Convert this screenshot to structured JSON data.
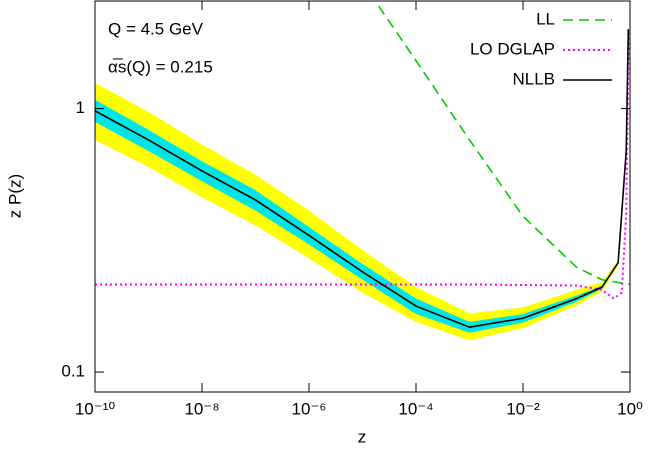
{
  "chart_data": {
    "type": "line",
    "xlabel": "z",
    "ylabel": "z P(z)",
    "annotations": [
      "Q = 4.5 GeV",
      "α̅s(Q) = 0.215"
    ],
    "xlog": true,
    "ylog": true,
    "xlim": [
      1e-10,
      1
    ],
    "ylim": [
      0.084,
      2.56
    ],
    "xticks": [
      {
        "value": 1e-10,
        "label": "10⁻¹⁰"
      },
      {
        "value": 1e-08,
        "label": "10⁻⁸"
      },
      {
        "value": 1e-06,
        "label": "10⁻⁶"
      },
      {
        "value": 0.0001,
        "label": "10⁻⁴"
      },
      {
        "value": 0.01,
        "label": "10⁻²"
      },
      {
        "value": 1,
        "label": "10⁰"
      }
    ],
    "yticks": [
      0.1,
      1
    ],
    "legend": "upper right",
    "bands": [
      {
        "color": "#ffff00",
        "x": [
          1e-10,
          1e-09,
          1e-08,
          1e-07,
          1e-06,
          1e-05,
          0.0001,
          0.001,
          0.01,
          0.1,
          0.3,
          0.6,
          0.85,
          0.93
        ],
        "upper": [
          1.25,
          0.97,
          0.73,
          0.56,
          0.41,
          0.29,
          0.21,
          0.167,
          0.176,
          0.205,
          0.22,
          0.265,
          0.7,
          2.02
        ],
        "lower": [
          0.76,
          0.6,
          0.46,
          0.36,
          0.27,
          0.2,
          0.155,
          0.132,
          0.147,
          0.179,
          0.202,
          0.255,
          0.68,
          1.98
        ]
      },
      {
        "color": "#00e5e5",
        "x": [
          1e-10,
          1e-09,
          1e-08,
          1e-07,
          1e-06,
          1e-05,
          0.0001,
          0.001,
          0.01,
          0.1,
          0.3,
          0.6,
          0.85,
          0.93
        ],
        "upper": [
          1.08,
          0.83,
          0.63,
          0.49,
          0.355,
          0.257,
          0.19,
          0.155,
          0.166,
          0.195,
          0.213,
          0.262,
          0.695,
          2.01
        ],
        "lower": [
          0.89,
          0.69,
          0.53,
          0.41,
          0.305,
          0.224,
          0.166,
          0.141,
          0.154,
          0.185,
          0.207,
          0.258,
          0.685,
          1.99
        ]
      }
    ],
    "series": [
      {
        "name": "LL",
        "color": "#00cc00",
        "dash": "dashed",
        "x": [
          2e-05,
          0.0001,
          0.001,
          0.01,
          0.1,
          0.3,
          1
        ],
        "values": [
          2.45,
          1.52,
          0.76,
          0.39,
          0.25,
          0.224,
          0.215
        ]
      },
      {
        "name": "LO DGLAP",
        "color": "#ff00ff",
        "dash": "dotted",
        "x": [
          1e-10,
          0.001,
          0.1,
          0.3,
          0.5,
          0.7,
          0.85,
          0.95
        ],
        "values": [
          0.215,
          0.215,
          0.213,
          0.205,
          0.19,
          0.2,
          0.4,
          2.0
        ]
      },
      {
        "name": "NLLB",
        "color": "#000000",
        "dash": "solid",
        "x": [
          1e-10,
          1e-09,
          1e-08,
          1e-07,
          1e-06,
          1e-05,
          0.0001,
          0.001,
          0.01,
          0.1,
          0.3,
          0.6,
          0.85,
          0.93
        ],
        "values": [
          0.98,
          0.76,
          0.58,
          0.45,
          0.33,
          0.24,
          0.178,
          0.148,
          0.16,
          0.19,
          0.21,
          0.26,
          0.69,
          2.0
        ]
      }
    ]
  }
}
